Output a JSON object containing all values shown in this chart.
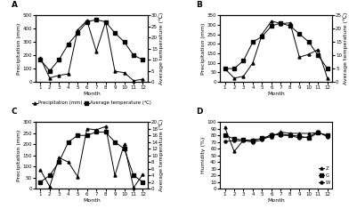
{
  "months": [
    1,
    2,
    3,
    4,
    5,
    6,
    7,
    8,
    9,
    10,
    11,
    12
  ],
  "A_precip": [
    180,
    30,
    50,
    60,
    390,
    460,
    230,
    450,
    80,
    70,
    10,
    20
  ],
  "A_temp": [
    10,
    5,
    10,
    17,
    22,
    27,
    28,
    27,
    22,
    18,
    12,
    10
  ],
  "A_precip_ylim": [
    0,
    500
  ],
  "A_temp_ylim": [
    0,
    30
  ],
  "A_temp_yticks": [
    0,
    5,
    10,
    15,
    20,
    25,
    30
  ],
  "A_precip_yticks": [
    0,
    100,
    200,
    300,
    400,
    500
  ],
  "B_precip": [
    70,
    20,
    30,
    100,
    250,
    320,
    305,
    310,
    130,
    145,
    170,
    20
  ],
  "B_temp": [
    5,
    5,
    8,
    15,
    17,
    21,
    22,
    21,
    18,
    15,
    10,
    5
  ],
  "B_precip_ylim": [
    0,
    350
  ],
  "B_temp_ylim": [
    0,
    25
  ],
  "B_temp_yticks": [
    0,
    5,
    10,
    15,
    20,
    25
  ],
  "B_precip_yticks": [
    0,
    50,
    100,
    150,
    200,
    250,
    300,
    350
  ],
  "C_precip": [
    85,
    10,
    140,
    120,
    55,
    270,
    265,
    280,
    60,
    200,
    5,
    65
  ],
  "C_temp": [
    2,
    4,
    8,
    14,
    16,
    16,
    17,
    17,
    14,
    12,
    4,
    2
  ],
  "C_precip_ylim": [
    0,
    300
  ],
  "C_temp_ylim": [
    0,
    20
  ],
  "C_temp_yticks": [
    0,
    2,
    4,
    6,
    8,
    10,
    12,
    14,
    16,
    18,
    20
  ],
  "C_precip_yticks": [
    0,
    50,
    100,
    150,
    200,
    250,
    300
  ],
  "D_Z": [
    92,
    56,
    73,
    73,
    75,
    78,
    85,
    83,
    83,
    83,
    84,
    80
  ],
  "D_G": [
    80,
    75,
    73,
    72,
    76,
    80,
    82,
    80,
    79,
    76,
    84,
    80
  ],
  "D_W": [
    71,
    72,
    72,
    70,
    73,
    82,
    80,
    80,
    76,
    78,
    85,
    78
  ],
  "D_ylim": [
    0,
    100
  ],
  "D_yticks": [
    0,
    10,
    20,
    30,
    40,
    50,
    60,
    70,
    80,
    90,
    100
  ],
  "panel_labels": [
    "A",
    "B",
    "C",
    "D"
  ],
  "legend_precip": "Precipitation (mm)",
  "legend_temp": "Average temperature (℃)",
  "xlabel": "Month",
  "ylabel_precip": "Precipitation (mm)",
  "ylabel_temp": "Average temperature (℃)",
  "ylabel_humidity": "Humidity (%)",
  "legend_Z": "Z",
  "legend_G": "G",
  "legend_W": "W",
  "line_color": "black",
  "linewidth": 0.7,
  "markersize": 2.2,
  "fontsize_label": 4.5,
  "fontsize_tick": 4.0,
  "fontsize_legend": 3.8,
  "fontsize_panel": 6.5
}
